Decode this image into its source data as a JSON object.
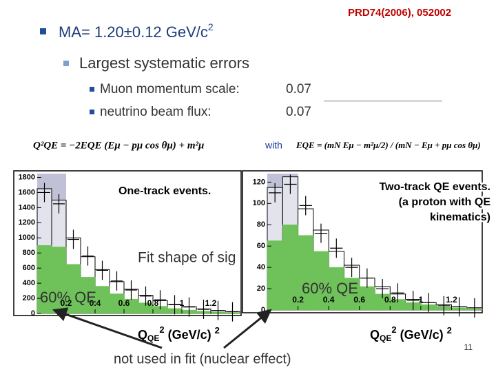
{
  "reference": "PRD74(2006), 052002",
  "title": {
    "text": "MA= 1.20±0.12 GeV/c",
    "sup": "2"
  },
  "bullet": "Largest systematic errors",
  "errors": [
    {
      "label": "Muon momentum scale:",
      "value": 0.07
    },
    {
      "label": "neutrino beam flux:",
      "value": 0.07
    }
  ],
  "formula_q2": "Q²QE = −2EQE (Eμ − pμ cos θμ) + m²μ",
  "with": "with",
  "formula_e": "EQE = (mN Eμ − m²μ/2) / (mN − Eμ + pμ cos θμ)",
  "note": "not used in fit (nuclear effect)",
  "page": "11",
  "chart_data": [
    {
      "type": "histogram",
      "title": [
        "One-track events."
      ],
      "annotations": [
        "Fit shape of sig",
        "60% QE"
      ],
      "xlabel": [
        "Q",
        "QE",
        "2",
        " (GeV/c) ",
        "2"
      ],
      "bins": [
        0,
        0.1,
        0.2,
        0.3,
        0.4,
        0.5,
        0.6,
        0.7,
        0.8,
        0.9,
        1.0,
        1.1,
        1.2,
        1.3,
        1.4
      ],
      "xlim": [
        0,
        1.4
      ],
      "xticks": [
        0.2,
        0.4,
        0.6,
        0.8,
        1,
        1.2
      ],
      "ylim": [
        0,
        1850
      ],
      "yticks": [
        0,
        200,
        400,
        600,
        800,
        1000,
        1200,
        1400,
        1600,
        1800
      ],
      "shade": {
        "range": [
          0,
          0.2
        ],
        "color": "#b9b9d3"
      },
      "series": [
        {
          "color": "#ffffff",
          "values": [
            1650,
            1500,
            1000,
            750,
            580,
            420,
            320,
            240,
            170,
            120,
            90,
            60,
            40,
            25
          ]
        },
        {
          "color": "#6fc25a",
          "values": [
            900,
            880,
            650,
            480,
            360,
            260,
            190,
            140,
            95,
            65,
            45,
            30,
            20,
            12
          ]
        },
        {
          "color": "#000000",
          "marker": "cross",
          "values": [
            1600,
            1450,
            980,
            760,
            570,
            430,
            310,
            230,
            180,
            115,
            85,
            55,
            38,
            22
          ]
        }
      ]
    },
    {
      "type": "histogram",
      "title": [
        "Two-track QE events.",
        "(a proton with QE",
        "kinematics)"
      ],
      "annotations": [
        "60% QE"
      ],
      "xlabel": [
        "Q",
        "QE",
        "2",
        " (GeV/c) ",
        "2"
      ],
      "bins": [
        0,
        0.1,
        0.2,
        0.3,
        0.4,
        0.5,
        0.6,
        0.7,
        0.8,
        0.9,
        1.0,
        1.1,
        1.2,
        1.3,
        1.4
      ],
      "xlim": [
        0,
        1.4
      ],
      "xticks": [
        0.2,
        0.4,
        0.6,
        0.8,
        1,
        1.2
      ],
      "ylim": [
        0,
        128
      ],
      "yticks": [
        0,
        20,
        40,
        60,
        80,
        100,
        120
      ],
      "shade": {
        "range": [
          0,
          0.2
        ],
        "color": "#b9b9d3"
      },
      "series": [
        {
          "color": "#ffffff",
          "values": [
            115,
            125,
            95,
            75,
            55,
            42,
            30,
            22,
            15,
            10,
            7,
            5,
            3,
            2
          ]
        },
        {
          "color": "#6fc25a",
          "values": [
            65,
            80,
            70,
            55,
            40,
            30,
            22,
            15,
            10,
            7,
            5,
            3,
            2,
            1
          ]
        },
        {
          "color": "#000000",
          "marker": "cross",
          "values": [
            110,
            118,
            98,
            72,
            58,
            40,
            30,
            20,
            16,
            9,
            7,
            4,
            3,
            2
          ]
        }
      ]
    }
  ]
}
